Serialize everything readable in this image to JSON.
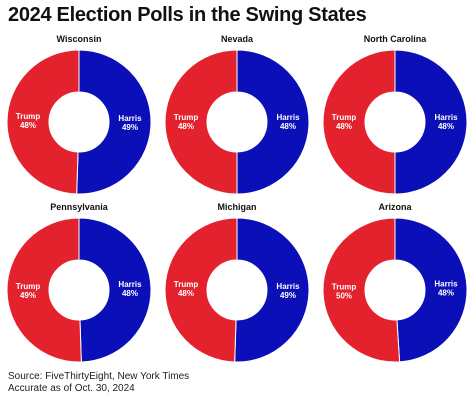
{
  "title": "2024 Election Polls in the Swing States",
  "colors": {
    "trump": "#e4222e",
    "harris": "#0b0fb8",
    "label": "#ffffff",
    "separator": "#ffffff"
  },
  "chart_data": {
    "type": "pie",
    "subtype": "donut",
    "charts": [
      {
        "state": "Wisconsin",
        "slices": [
          {
            "name": "Trump",
            "label": "48%",
            "value": 48,
            "side": "left"
          },
          {
            "name": "Harris",
            "label": "49%",
            "value": 49,
            "side": "right"
          }
        ]
      },
      {
        "state": "Nevada",
        "slices": [
          {
            "name": "Trump",
            "label": "48%",
            "value": 48,
            "side": "left"
          },
          {
            "name": "Harris",
            "label": "48%",
            "value": 48,
            "side": "right"
          }
        ]
      },
      {
        "state": "North Carolina",
        "slices": [
          {
            "name": "Trump",
            "label": "48%",
            "value": 48,
            "side": "left"
          },
          {
            "name": "Harris",
            "label": "48%",
            "value": 48,
            "side": "right"
          }
        ]
      },
      {
        "state": "Pennsylvania",
        "slices": [
          {
            "name": "Trump",
            "label": "49%",
            "value": 49,
            "side": "left"
          },
          {
            "name": "Harris",
            "label": "48%",
            "value": 48,
            "side": "right"
          }
        ]
      },
      {
        "state": "Michigan",
        "slices": [
          {
            "name": "Trump",
            "label": "48%",
            "value": 48,
            "side": "left"
          },
          {
            "name": "Harris",
            "label": "49%",
            "value": 49,
            "side": "right"
          }
        ]
      },
      {
        "state": "Arizona",
        "slices": [
          {
            "name": "Trump",
            "label": "50%",
            "value": 50,
            "side": "left"
          },
          {
            "name": "Harris",
            "label": "48%",
            "value": 48,
            "side": "right"
          }
        ]
      }
    ]
  },
  "footer": {
    "source": "Source: FiveThirtyEight, New York Times",
    "accurate": "Accurate as of Oct. 30, 2024"
  }
}
